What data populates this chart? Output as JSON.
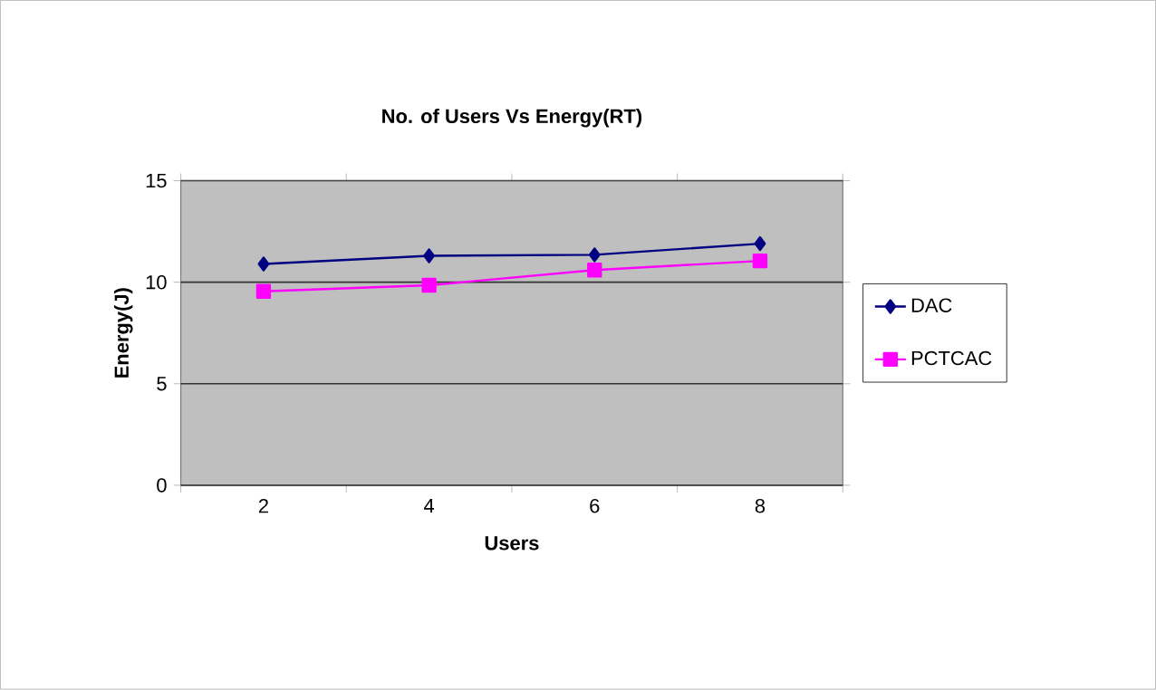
{
  "chart_data": {
    "type": "line",
    "title": "No. of Users Vs Energy(RT)",
    "xlabel": "Users",
    "ylabel": "Energy(J)",
    "categories": [
      "2",
      "4",
      "6",
      "8"
    ],
    "series": [
      {
        "name": "DAC",
        "color": "#000080",
        "marker": "diamond",
        "values": [
          10.9,
          11.3,
          11.35,
          11.9
        ]
      },
      {
        "name": "PCTCAC",
        "color": "#ff00ff",
        "marker": "square",
        "values": [
          9.55,
          9.85,
          10.6,
          11.05
        ]
      }
    ],
    "ylim": [
      0,
      15
    ],
    "yticks": [
      0,
      5,
      10,
      15
    ],
    "grid": "y",
    "legend": "right",
    "line_style": "solid"
  }
}
